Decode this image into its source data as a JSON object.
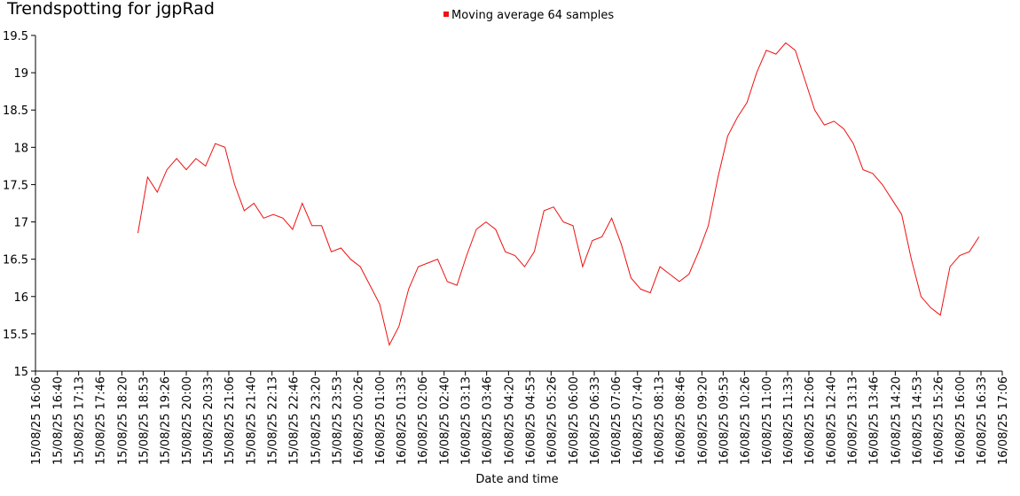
{
  "chart_data": {
    "type": "line",
    "title": "Trendspotting for jgpRad",
    "xlabel": "Date and time",
    "legend": "top",
    "x": [
      "15/08/25 18:45",
      "15/08/25 19:00",
      "15/08/25 19:15",
      "15/08/25 19:30",
      "15/08/25 19:45",
      "15/08/25 20:00",
      "15/08/25 20:15",
      "15/08/25 20:30",
      "15/08/25 20:45",
      "15/08/25 21:00",
      "15/08/25 21:15",
      "15/08/25 21:30",
      "15/08/25 21:45",
      "15/08/25 22:00",
      "15/08/25 22:15",
      "15/08/25 22:30",
      "15/08/25 22:45",
      "15/08/25 23:00",
      "15/08/25 23:15",
      "15/08/25 23:30",
      "15/08/25 23:45",
      "16/08/25 00:00",
      "16/08/25 00:15",
      "16/08/25 00:30",
      "16/08/25 00:45",
      "16/08/25 01:00",
      "16/08/25 01:15",
      "16/08/25 01:30",
      "16/08/25 01:45",
      "16/08/25 02:00",
      "16/08/25 02:15",
      "16/08/25 02:30",
      "16/08/25 02:45",
      "16/08/25 03:00",
      "16/08/25 03:15",
      "16/08/25 03:30",
      "16/08/25 03:45",
      "16/08/25 04:00",
      "16/08/25 04:15",
      "16/08/25 04:30",
      "16/08/25 04:45",
      "16/08/25 05:00",
      "16/08/25 05:15",
      "16/08/25 05:30",
      "16/08/25 05:45",
      "16/08/25 06:00",
      "16/08/25 06:15",
      "16/08/25 06:30",
      "16/08/25 06:45",
      "16/08/25 07:00",
      "16/08/25 07:15",
      "16/08/25 07:30",
      "16/08/25 07:45",
      "16/08/25 08:00",
      "16/08/25 08:15",
      "16/08/25 08:30",
      "16/08/25 08:45",
      "16/08/25 09:00",
      "16/08/25 09:15",
      "16/08/25 09:30",
      "16/08/25 09:45",
      "16/08/25 10:00",
      "16/08/25 10:15",
      "16/08/25 10:30",
      "16/08/25 10:45",
      "16/08/25 11:00",
      "16/08/25 11:15",
      "16/08/25 11:30",
      "16/08/25 11:45",
      "16/08/25 12:00",
      "16/08/25 12:15",
      "16/08/25 12:30",
      "16/08/25 12:45",
      "16/08/25 13:00",
      "16/08/25 13:15",
      "16/08/25 13:30",
      "16/08/25 13:45",
      "16/08/25 14:00",
      "16/08/25 14:15",
      "16/08/25 14:30",
      "16/08/25 14:45",
      "16/08/25 15:00",
      "16/08/25 15:15",
      "16/08/25 15:30",
      "16/08/25 15:45",
      "16/08/25 16:00",
      "16/08/25 16:15",
      "16/08/25 16:30"
    ],
    "series": [
      {
        "name": "Moving average 64 samples",
        "color": "#ee1111",
        "values": [
          16.85,
          17.6,
          17.4,
          17.7,
          17.85,
          17.7,
          17.85,
          17.75,
          18.05,
          18.0,
          17.5,
          17.15,
          17.25,
          17.05,
          17.1,
          17.05,
          16.9,
          17.25,
          16.95,
          16.95,
          16.6,
          16.65,
          16.5,
          16.4,
          16.15,
          15.9,
          15.35,
          15.6,
          16.1,
          16.4,
          16.45,
          16.5,
          16.2,
          16.15,
          16.55,
          16.9,
          17.0,
          16.9,
          16.6,
          16.55,
          16.4,
          16.6,
          17.15,
          17.2,
          17.0,
          16.95,
          16.4,
          16.75,
          16.8,
          17.05,
          16.7,
          16.25,
          16.1,
          16.05,
          16.4,
          16.3,
          16.2,
          16.3,
          16.6,
          16.95,
          17.6,
          18.15,
          18.4,
          18.6,
          19.0,
          19.3,
          19.25,
          19.4,
          19.3,
          18.9,
          18.5,
          18.3,
          18.35,
          18.25,
          18.05,
          17.7,
          17.65,
          17.5,
          17.3,
          17.1,
          16.5,
          16.0,
          15.85,
          15.75,
          16.4,
          16.55,
          16.6,
          16.8
        ]
      }
    ],
    "xlim": [
      "15/08/25 16:06",
      "16/08/25 17:06"
    ],
    "xticks": [
      "15/08/25 16:06",
      "15/08/25 16:40",
      "15/08/25 17:13",
      "15/08/25 17:46",
      "15/08/25 18:20",
      "15/08/25 18:53",
      "15/08/25 19:26",
      "15/08/25 20:00",
      "15/08/25 20:33",
      "15/08/25 21:06",
      "15/08/25 21:40",
      "15/08/25 22:13",
      "15/08/25 22:46",
      "15/08/25 23:20",
      "15/08/25 23:53",
      "16/08/25 00:26",
      "16/08/25 01:00",
      "16/08/25 01:33",
      "16/08/25 02:06",
      "16/08/25 02:40",
      "16/08/25 03:13",
      "16/08/25 03:46",
      "16/08/25 04:20",
      "16/08/25 04:53",
      "16/08/25 05:26",
      "16/08/25 06:00",
      "16/08/25 06:33",
      "16/08/25 07:06",
      "16/08/25 07:40",
      "16/08/25 08:13",
      "16/08/25 08:46",
      "16/08/25 09:20",
      "16/08/25 09:53",
      "16/08/25 10:26",
      "16/08/25 11:00",
      "16/08/25 11:33",
      "16/08/25 12:06",
      "16/08/25 12:40",
      "16/08/25 13:13",
      "16/08/25 13:46",
      "16/08/25 14:20",
      "16/08/25 14:53",
      "16/08/25 15:26",
      "16/08/25 16:00",
      "16/08/25 16:33",
      "16/08/25 17:06"
    ],
    "ylim": [
      15,
      19.5
    ],
    "yticks": [
      15,
      15.5,
      16,
      16.5,
      17,
      17.5,
      18,
      18.5,
      19,
      19.5
    ]
  }
}
